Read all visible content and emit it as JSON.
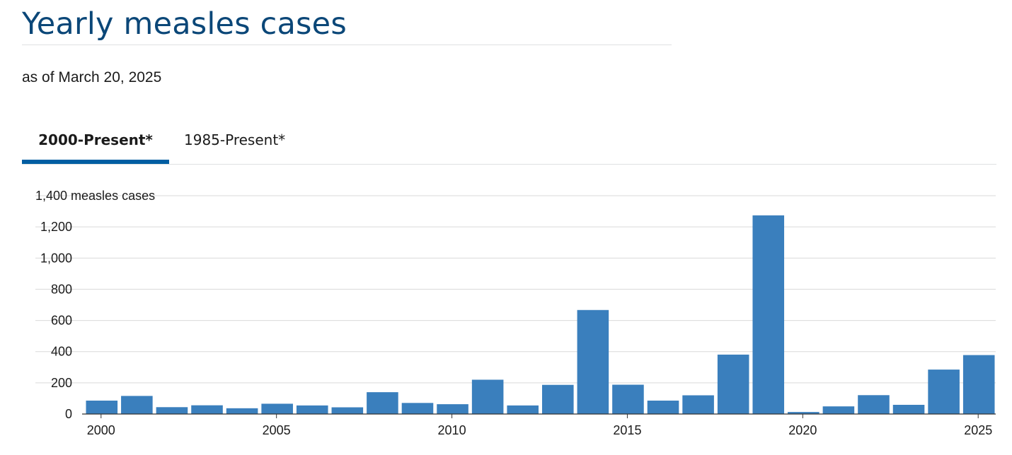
{
  "header": {
    "title": "Yearly measles cases",
    "subtitle": "as of March 20, 2025"
  },
  "tabs": [
    {
      "label": "2000-Present*",
      "active": true
    },
    {
      "label": "1985-Present*",
      "active": false
    }
  ],
  "colors": {
    "title": "#0b4778",
    "bar": "#3a7fbd",
    "tab_active": "#005ea2",
    "grid": "#d9d9d9"
  },
  "chart_data": {
    "type": "bar",
    "title": "",
    "xlabel": "",
    "ylabel": "measles cases",
    "ylim": [
      0,
      1400
    ],
    "y_ticks": [
      0,
      200,
      400,
      600,
      800,
      1000,
      1200,
      1400
    ],
    "y_tick_labels": [
      "0",
      "200",
      "400",
      "600",
      "800",
      "1,000",
      "1,200",
      "1,400 measles cases"
    ],
    "x_tick_labels": [
      "2000",
      "2005",
      "2010",
      "2015",
      "2020",
      "2025"
    ],
    "grid": "horizontal",
    "categories": [
      "2000",
      "2001",
      "2002",
      "2003",
      "2004",
      "2005",
      "2006",
      "2007",
      "2008",
      "2009",
      "2010",
      "2011",
      "2012",
      "2013",
      "2014",
      "2015",
      "2016",
      "2017",
      "2018",
      "2019",
      "2020",
      "2021",
      "2022",
      "2023",
      "2024",
      "2025"
    ],
    "values": [
      86,
      116,
      44,
      56,
      37,
      66,
      55,
      43,
      140,
      71,
      63,
      220,
      55,
      187,
      667,
      188,
      86,
      120,
      381,
      1274,
      13,
      49,
      121,
      59,
      285,
      378
    ]
  }
}
